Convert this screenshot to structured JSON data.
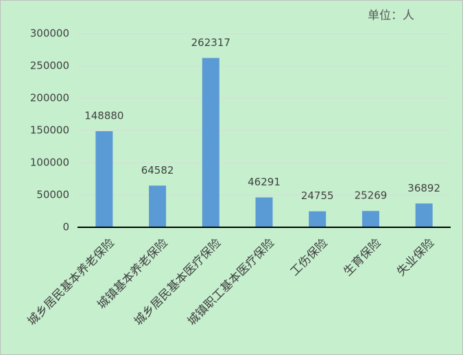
{
  "chart_data": {
    "type": "bar",
    "unit_note": "单位：人",
    "categories": [
      "城乡居民基本养老保险",
      "城镇基本养老保险",
      "城乡居民基本医疗保险",
      "城镇职工基本医疗保险",
      "工伤保险",
      "生育保险",
      "失业保险"
    ],
    "values": [
      148880,
      64582,
      262317,
      46291,
      24755,
      25269,
      36892
    ],
    "color": "#5b9bd5",
    "ylim": [
      0,
      300000
    ],
    "yticks": [
      0,
      50000,
      100000,
      150000,
      200000,
      250000,
      300000
    ],
    "grid": true
  }
}
